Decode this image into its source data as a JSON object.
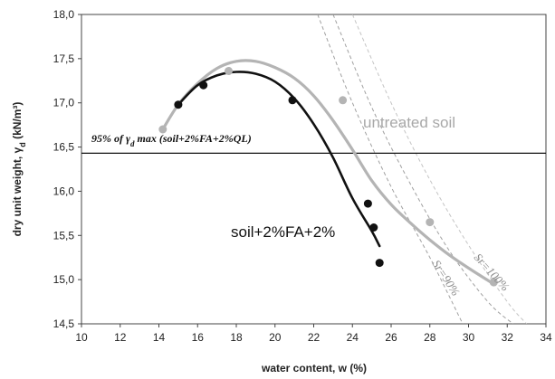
{
  "chart_data": {
    "type": "scatter",
    "xlabel": "water content, w (%)",
    "ylabel_main": "dry unit weight, γ",
    "ylabel_sub": "d",
    "ylabel_unit": " (kN/m³)",
    "xlim": [
      10,
      34
    ],
    "ylim": [
      14.5,
      18.0
    ],
    "x_ticks": [
      10,
      12,
      14,
      16,
      18,
      20,
      22,
      24,
      26,
      28,
      30,
      32,
      34
    ],
    "y_ticks": [
      14.5,
      15.0,
      15.5,
      16.0,
      16.5,
      17.0,
      17.5,
      18.0
    ],
    "y_tick_labels": [
      "14,5",
      "15,0",
      "15,5",
      "16,0",
      "16,5",
      "17,0",
      "17,5",
      "18,0"
    ],
    "grid": false,
    "series": [
      {
        "name": "untreated soil",
        "color": "#b4b4b4",
        "points": [
          [
            14.2,
            16.7
          ],
          [
            15.0,
            16.98
          ],
          [
            17.6,
            17.36
          ],
          [
            23.5,
            17.03
          ],
          [
            28.0,
            15.65
          ],
          [
            31.3,
            14.97
          ]
        ],
        "curve": [
          [
            14.2,
            16.7
          ],
          [
            15.0,
            16.98
          ],
          [
            16.0,
            17.22
          ],
          [
            17.0,
            17.39
          ],
          [
            18.0,
            17.47
          ],
          [
            19.0,
            17.47
          ],
          [
            20.0,
            17.4
          ],
          [
            21.0,
            17.28
          ],
          [
            22.0,
            17.08
          ],
          [
            23.0,
            16.8
          ],
          [
            24.0,
            16.47
          ],
          [
            25.0,
            16.12
          ],
          [
            26.0,
            15.85
          ],
          [
            27.0,
            15.64
          ],
          [
            28.0,
            15.45
          ],
          [
            29.0,
            15.28
          ],
          [
            30.0,
            15.13
          ],
          [
            31.3,
            14.95
          ]
        ]
      },
      {
        "name": "soil+2%FA+2%",
        "color": "#111111",
        "points": [
          [
            15.0,
            16.98
          ],
          [
            16.3,
            17.2
          ],
          [
            20.9,
            17.03
          ],
          [
            24.8,
            15.86
          ],
          [
            25.1,
            15.59
          ],
          [
            25.4,
            15.19
          ]
        ],
        "curve": [
          [
            15.0,
            16.98
          ],
          [
            16.0,
            17.2
          ],
          [
            17.0,
            17.31
          ],
          [
            18.0,
            17.35
          ],
          [
            19.0,
            17.33
          ],
          [
            20.0,
            17.24
          ],
          [
            21.0,
            17.05
          ],
          [
            22.0,
            16.76
          ],
          [
            23.0,
            16.38
          ],
          [
            24.0,
            15.92
          ],
          [
            25.0,
            15.55
          ],
          [
            25.4,
            15.38
          ]
        ]
      }
    ],
    "reference_curves": [
      {
        "label": "Sr=100%",
        "color": "#a0a0a0",
        "points": [
          [
            23.0,
            18.0
          ],
          [
            25.0,
            16.95
          ],
          [
            27.0,
            16.08
          ],
          [
            29.0,
            15.33
          ],
          [
            31.0,
            14.75
          ],
          [
            32.3,
            14.5
          ]
        ]
      },
      {
        "label": "Sr=90%",
        "color": "#a0a0a0",
        "points": [
          [
            22.2,
            18.0
          ],
          [
            24.0,
            17.0
          ],
          [
            26.0,
            16.05
          ],
          [
            28.0,
            15.25
          ],
          [
            29.7,
            14.5
          ]
        ]
      },
      {
        "label": "",
        "color": "#c4c4c4",
        "points": [
          [
            24.0,
            18.0
          ],
          [
            26.0,
            17.0
          ],
          [
            28.0,
            16.13
          ],
          [
            30.0,
            15.39
          ],
          [
            32.0,
            14.75
          ],
          [
            33.0,
            14.5
          ]
        ]
      }
    ],
    "hline": {
      "y": 16.43,
      "label_main": "95% of γ",
      "label_sub": "d",
      "label_rest": " max (soil+2%FA+2%QL)"
    },
    "annotations": {
      "untreated": "untreated soil",
      "treated": "soil+2%FA+2%",
      "sr100": "Sr=100%",
      "sr90": "Sr=90%"
    }
  }
}
